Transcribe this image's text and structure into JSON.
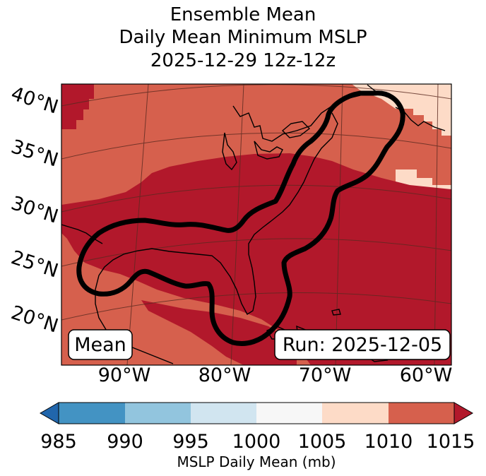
{
  "title": {
    "line1": "Ensemble Mean",
    "line2": "Daily Mean Minimum MSLP",
    "line3": "2025-12-29 12z-12z"
  },
  "map": {
    "latitude_labels": [
      "40°N",
      "35°N",
      "30°N",
      "25°N",
      "20°N"
    ],
    "longitude_labels": [
      "90°W",
      "80°W",
      "70°W",
      "60°W"
    ],
    "mean_label": "Mean",
    "run_label": "Run: 2025-12-05",
    "region_colors": {
      "land_1010_1015": "#d6604d",
      "core_below_1015": "#b2182b",
      "ne_1005_1010": "#fddbc7",
      "contour": "#000000"
    }
  },
  "colorbar": {
    "label": "MSLP Daily Mean (mb)",
    "ticks": [
      "985",
      "990",
      "995",
      "1000",
      "1005",
      "1010",
      "1015"
    ],
    "colors": [
      "#2166ac",
      "#4393c3",
      "#92c5de",
      "#d1e5f0",
      "#f7f7f7",
      "#fddbc7",
      "#d6604d",
      "#b2182b"
    ]
  }
}
